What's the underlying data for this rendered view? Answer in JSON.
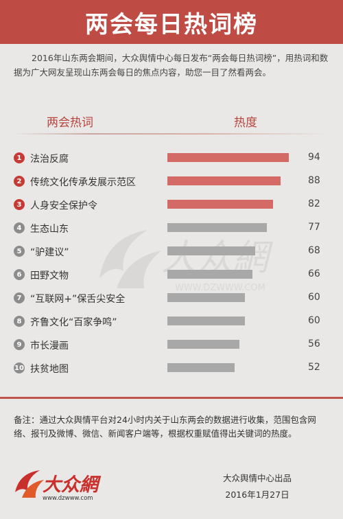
{
  "header": {
    "title": "两会每日热词榜"
  },
  "intro": {
    "text": "2016年山东两会期间，大众舆情中心每日发布“两会每日热词榜”，用热词和数据为广大网友呈现山东两会每日的焦点内容，助您一目了然看两会。"
  },
  "columns": {
    "term": "两会热词",
    "heat": "热度"
  },
  "colors": {
    "top": "#d46a66",
    "rest": "#a8a8a8",
    "badge_top": "#c63a35",
    "badge_rest": "#8c8c8c",
    "brand": "#bf4b45"
  },
  "chart_data": {
    "type": "bar",
    "orientation": "horizontal",
    "categories": [
      "法治反腐",
      "传统文化传承发展示范区",
      "人身安全保护令",
      "生态山东",
      "“驴建议”",
      "田野文物",
      "“互联网+”保舌尖安全",
      "齐鲁文化“百家争鸣”",
      "市长漫画",
      "扶贫地图"
    ],
    "ranks": [
      "1",
      "2",
      "3",
      "4",
      "5",
      "6",
      "7",
      "8",
      "9",
      "10"
    ],
    "values": [
      94,
      88,
      82,
      77,
      68,
      66,
      60,
      60,
      56,
      52
    ],
    "highlight_top": 3,
    "xlabel": "热度",
    "ylabel": "两会热词"
  },
  "watermark": {
    "url": "WWW.DZWWW.COM"
  },
  "footer": {
    "note": "备注：通过大众舆情平台对24小时内关于山东两会的数据进行收集，范围包含网络、报刊及微博、微信、新闻客户端等，根据权重赋值得出关键词的热度。",
    "logo_text": "大众網",
    "logo_url": "www.dzwww.com",
    "publisher": "大众舆情中心出品",
    "date": "2016年1月27日"
  }
}
